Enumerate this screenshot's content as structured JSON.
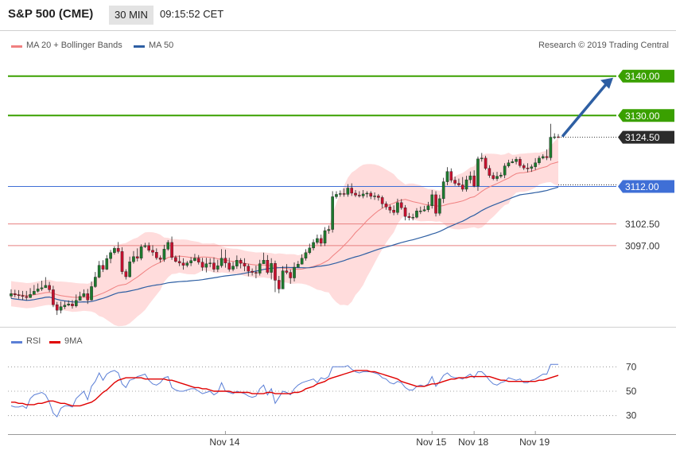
{
  "header": {
    "title": "S&P 500 (CME)",
    "timeframe": "30 MIN",
    "time": "09:15:52 CET"
  },
  "legend": {
    "ma20": "MA 20 + Bollinger Bands",
    "ma50": "MA 50",
    "copyright": "Research © 2019 Trading Central",
    "rsi": "RSI",
    "nine_ma": "9MA"
  },
  "colors": {
    "up": "#1d7a2e",
    "down": "#c8102e",
    "band_fill": "#ffdcdc",
    "ma20": "#f08080",
    "ma50": "#2e5fa3",
    "resistance_green": "#3aa000",
    "support_red": "#e88080",
    "blue_level": "#3f6fd6",
    "arrow": "#2e5fa3",
    "rsi": "#5b7fd6",
    "rsi_ma": "#e00000"
  },
  "chart_data": [
    {
      "type": "candlestick",
      "title": "S&P 500 (CME)",
      "timeframe": "30 MIN",
      "ylim": [
        3077.0,
        3146.0
      ],
      "x_ticks": [
        "Nov 14",
        "Nov 15",
        "Nov 18",
        "Nov 19"
      ],
      "price_levels": [
        {
          "value": 3140.0,
          "label": "3140.00",
          "style": "resistance"
        },
        {
          "value": 3130.0,
          "label": "3130.00",
          "style": "resistance"
        },
        {
          "value": 3124.5,
          "label": "3124.50",
          "style": "current"
        },
        {
          "value": 3112.0,
          "label": "3112.00",
          "style": "pivot"
        },
        {
          "value": 3102.5,
          "label": "3102.50",
          "style": "support"
        },
        {
          "value": 3097.0,
          "label": "3097.00",
          "style": "support"
        }
      ],
      "close": [
        3084.8,
        3084.5,
        3084.3,
        3084.1,
        3083.8,
        3084.6,
        3085.4,
        3086.0,
        3086.3,
        3086.9,
        3085.8,
        3082.0,
        3080.6,
        3081.5,
        3081.9,
        3082.2,
        3081.7,
        3083.1,
        3084.1,
        3084.8,
        3083.2,
        3086.6,
        3089.0,
        3092.0,
        3091.0,
        3093.7,
        3095.2,
        3096.3,
        3095.5,
        3090.4,
        3089.1,
        3092.9,
        3094.2,
        3093.8,
        3096.7,
        3097.0,
        3095.8,
        3095.3,
        3093.9,
        3093.5,
        3096.1,
        3097.8,
        3094.0,
        3093.0,
        3092.6,
        3092.0,
        3092.6,
        3093.2,
        3093.8,
        3092.8,
        3091.5,
        3092.4,
        3092.6,
        3091.0,
        3091.9,
        3093.8,
        3092.6,
        3091.0,
        3091.8,
        3093.3,
        3092.5,
        3091.8,
        3090.5,
        3090.2,
        3090.0,
        3092.4,
        3093.3,
        3090.2,
        3092.5,
        3088.2,
        3086.0,
        3090.6,
        3090.2,
        3088.8,
        3091.5,
        3092.3,
        3093.8,
        3095.2,
        3096.4,
        3097.8,
        3098.8,
        3097.6,
        3100.8,
        3101.1,
        3109.4,
        3110.0,
        3110.2,
        3110.0,
        3111.6,
        3110.3,
        3109.8,
        3109.6,
        3110.1,
        3110.3,
        3109.5,
        3109.6,
        3109.2,
        3107.6,
        3106.8,
        3106.0,
        3105.4,
        3107.9,
        3106.6,
        3104.4,
        3104.1,
        3104.2,
        3105.8,
        3105.8,
        3106.1,
        3107.1,
        3109.9,
        3105.2,
        3108.9,
        3113.2,
        3115.8,
        3113.6,
        3112.8,
        3112.4,
        3111.3,
        3113.7,
        3114.7,
        3112.1,
        3119.0,
        3119.2,
        3116.6,
        3114.8,
        3114.0,
        3114.6,
        3114.9,
        3117.2,
        3118.0,
        3118.3,
        3118.9,
        3117.3,
        3116.7,
        3116.6,
        3117.0,
        3118.0,
        3119.2,
        3119.6,
        3119.3,
        3124.5,
        3124.6,
        3124.5
      ],
      "high": [
        3085.9,
        3085.8,
        3085.7,
        3085.5,
        3085.5,
        3086.2,
        3087.0,
        3087.4,
        3088.1,
        3089.0,
        3087.8,
        3086.8,
        3082.7,
        3082.8,
        3082.9,
        3083.1,
        3083.2,
        3084.6,
        3085.3,
        3085.9,
        3086.0,
        3087.9,
        3090.3,
        3093.1,
        3093.3,
        3094.6,
        3095.9,
        3096.8,
        3097.9,
        3096.6,
        3091.0,
        3094.2,
        3095.6,
        3096.3,
        3097.3,
        3097.7,
        3097.8,
        3097.1,
        3096.3,
        3094.5,
        3097.2,
        3098.4,
        3099.3,
        3094.5,
        3094.5,
        3093.8,
        3093.1,
        3094.1,
        3094.9,
        3094.6,
        3093.9,
        3093.9,
        3093.8,
        3094.0,
        3093.4,
        3096.1,
        3096.0,
        3093.9,
        3092.9,
        3094.5,
        3093.8,
        3093.8,
        3092.4,
        3091.2,
        3091.9,
        3093.4,
        3095.2,
        3094.6,
        3093.8,
        3093.2,
        3089.3,
        3091.8,
        3092.3,
        3090.9,
        3092.7,
        3093.1,
        3094.8,
        3096.1,
        3097.5,
        3098.6,
        3099.8,
        3099.8,
        3101.7,
        3102.1,
        3110.8,
        3110.8,
        3111.0,
        3111.5,
        3112.6,
        3112.8,
        3111.1,
        3110.8,
        3111.1,
        3110.8,
        3110.8,
        3110.5,
        3110.1,
        3109.7,
        3108.2,
        3107.4,
        3107.2,
        3108.9,
        3108.8,
        3107.3,
        3105.3,
        3105.1,
        3106.5,
        3106.9,
        3107.1,
        3108.1,
        3111.1,
        3110.8,
        3109.9,
        3114.2,
        3116.9,
        3116.6,
        3114.5,
        3114.0,
        3114.4,
        3114.7,
        3115.8,
        3116.1,
        3119.6,
        3120.5,
        3119.8,
        3117.4,
        3115.6,
        3115.7,
        3115.6,
        3117.9,
        3118.8,
        3119.0,
        3119.5,
        3119.5,
        3117.8,
        3117.9,
        3117.6,
        3119.2,
        3119.8,
        3120.2,
        3121.4,
        3127.9,
        3125.5,
        3125.3
      ],
      "low": [
        3083.6,
        3083.9,
        3083.5,
        3083.2,
        3083.1,
        3083.7,
        3085.1,
        3085.1,
        3085.5,
        3086.3,
        3085.2,
        3081.4,
        3079.4,
        3079.8,
        3080.9,
        3081.6,
        3081.0,
        3081.3,
        3083.5,
        3083.8,
        3082.2,
        3083.0,
        3086.3,
        3088.7,
        3090.3,
        3090.8,
        3092.5,
        3094.7,
        3095.0,
        3089.7,
        3088.4,
        3088.9,
        3092.4,
        3093.0,
        3093.3,
        3096.4,
        3095.3,
        3094.4,
        3093.4,
        3092.7,
        3092.9,
        3095.7,
        3093.4,
        3092.7,
        3091.8,
        3090.9,
        3091.5,
        3091.8,
        3093.0,
        3092.2,
        3090.6,
        3090.2,
        3091.5,
        3090.3,
        3090.3,
        3091.4,
        3091.4,
        3090.4,
        3090.5,
        3091.1,
        3091.2,
        3090.5,
        3089.2,
        3089.4,
        3088.7,
        3089.4,
        3092.5,
        3089.7,
        3088.4,
        3085.2,
        3084.9,
        3086.2,
        3089.7,
        3087.3,
        3087.9,
        3091.7,
        3092.2,
        3093.2,
        3094.8,
        3095.8,
        3097.3,
        3096.8,
        3096.9,
        3100.0,
        3100.3,
        3108.9,
        3109.4,
        3109.4,
        3109.4,
        3109.6,
        3109.3,
        3109.2,
        3109.0,
        3109.2,
        3108.8,
        3108.6,
        3108.4,
        3106.5,
        3106.1,
        3105.2,
        3104.7,
        3104.8,
        3106.1,
        3103.4,
        3103.4,
        3103.4,
        3103.9,
        3105.0,
        3105.6,
        3105.5,
        3106.4,
        3104.4,
        3104.6,
        3107.8,
        3112.3,
        3113.0,
        3112.2,
        3111.9,
        3110.7,
        3110.7,
        3112.8,
        3111.8,
        3110.9,
        3118.3,
        3116.2,
        3114.2,
        3113.6,
        3113.4,
        3114.1,
        3114.1,
        3116.8,
        3117.9,
        3117.6,
        3116.8,
        3116.2,
        3115.6,
        3115.7,
        3116.2,
        3117.5,
        3118.9,
        3118.7,
        3118.6,
        3124.0,
        3124.4
      ],
      "open": [
        3084.2,
        3084.8,
        3084.5,
        3084.3,
        3084.1,
        3083.8,
        3084.6,
        3085.4,
        3086.0,
        3086.3,
        3086.9,
        3085.8,
        3082.0,
        3080.6,
        3081.5,
        3081.9,
        3082.2,
        3081.7,
        3083.1,
        3084.1,
        3084.8,
        3083.2,
        3086.6,
        3089.0,
        3092.0,
        3091.0,
        3093.7,
        3095.2,
        3096.3,
        3095.5,
        3090.4,
        3089.1,
        3092.9,
        3094.2,
        3093.8,
        3096.7,
        3097.0,
        3095.8,
        3095.3,
        3093.9,
        3093.5,
        3096.1,
        3097.8,
        3094.0,
        3093.0,
        3092.6,
        3092.0,
        3092.6,
        3093.2,
        3093.8,
        3092.8,
        3091.5,
        3092.4,
        3092.6,
        3091.0,
        3091.9,
        3093.8,
        3092.6,
        3091.0,
        3091.8,
        3093.3,
        3092.5,
        3091.8,
        3090.5,
        3090.2,
        3090.0,
        3092.4,
        3093.3,
        3090.2,
        3092.5,
        3088.2,
        3086.0,
        3090.6,
        3090.2,
        3088.8,
        3091.5,
        3092.3,
        3093.8,
        3095.2,
        3096.4,
        3097.8,
        3098.8,
        3097.6,
        3100.8,
        3101.1,
        3109.4,
        3110.0,
        3110.2,
        3110.0,
        3111.6,
        3110.3,
        3109.8,
        3109.6,
        3110.1,
        3110.3,
        3109.5,
        3109.6,
        3109.2,
        3107.6,
        3106.8,
        3106.0,
        3105.4,
        3107.9,
        3106.6,
        3104.4,
        3104.1,
        3104.2,
        3105.8,
        3105.8,
        3106.1,
        3107.1,
        3109.9,
        3105.2,
        3108.9,
        3113.2,
        3115.8,
        3113.6,
        3112.8,
        3112.4,
        3111.3,
        3113.7,
        3114.7,
        3112.1,
        3119.0,
        3119.2,
        3116.6,
        3114.8,
        3114.0,
        3114.6,
        3114.9,
        3117.2,
        3118.0,
        3118.3,
        3118.9,
        3117.3,
        3116.7,
        3116.6,
        3117.0,
        3118.0,
        3119.2,
        3119.6,
        3119.3,
        3124.5,
        3124.6
      ],
      "projection": {
        "from": 3124.5,
        "to": 3140.0
      }
    },
    {
      "type": "line",
      "title": "RSI",
      "ylim": [
        20,
        80
      ],
      "y_ticks": [
        30,
        50,
        70
      ],
      "series": [
        {
          "name": "RSI",
          "values": [
            38,
            37,
            37,
            38,
            36,
            44,
            47,
            48,
            49,
            47,
            41,
            32,
            29,
            36,
            38,
            38,
            37,
            44,
            47,
            50,
            43,
            54,
            58,
            65,
            59,
            64,
            66,
            67,
            65,
            56,
            53,
            59,
            60,
            62,
            63,
            64,
            59,
            56,
            55,
            57,
            61,
            62,
            53,
            51,
            50,
            50,
            51,
            52,
            52,
            50,
            48,
            49,
            50,
            47,
            49,
            57,
            50,
            49,
            48,
            50,
            49,
            48,
            46,
            45,
            46,
            52,
            55,
            47,
            52,
            40,
            45,
            50,
            49,
            47,
            52,
            55,
            57,
            58,
            59,
            60,
            57,
            61,
            60,
            62,
            70,
            70,
            70,
            70,
            71,
            68,
            66,
            65,
            66,
            66,
            66,
            65,
            64,
            61,
            60,
            57,
            56,
            58,
            57,
            53,
            51,
            51,
            54,
            55,
            54,
            56,
            62,
            54,
            58,
            63,
            65,
            62,
            61,
            61,
            60,
            62,
            64,
            61,
            66,
            66,
            63,
            59,
            56,
            55,
            57,
            58,
            61,
            60,
            59,
            60,
            57,
            57,
            59,
            60,
            62,
            64,
            64,
            72,
            72,
            72
          ]
        },
        {
          "name": "9MA",
          "values": [
            41,
            41,
            40,
            40,
            39,
            39,
            39,
            40,
            40,
            41,
            42,
            42,
            41,
            40,
            40,
            39,
            38,
            38,
            38,
            39,
            40,
            41,
            43,
            46,
            49,
            51,
            54,
            57,
            59,
            60,
            61,
            61,
            61,
            61,
            61,
            60,
            60,
            60,
            60,
            60,
            60,
            59,
            59,
            58,
            57,
            56,
            55,
            54,
            53,
            53,
            52,
            52,
            51,
            50,
            50,
            50,
            50,
            50,
            49,
            49,
            49,
            49,
            49,
            48,
            48,
            48,
            48,
            49,
            49,
            48,
            48,
            48,
            48,
            48,
            49,
            49,
            50,
            52,
            53,
            54,
            56,
            57,
            58,
            60,
            61,
            62,
            63,
            64,
            65,
            66,
            67,
            67,
            67,
            67,
            66,
            66,
            65,
            64,
            63,
            62,
            61,
            60,
            58,
            57,
            56,
            55,
            54,
            54,
            54,
            55,
            56,
            56,
            57,
            58,
            59,
            60,
            60,
            61,
            61,
            61,
            62,
            62,
            62,
            62,
            62,
            62,
            61,
            60,
            59,
            59,
            58,
            58,
            58,
            58,
            58,
            58,
            58,
            58,
            59,
            59,
            60,
            61,
            62,
            63
          ]
        }
      ]
    }
  ]
}
